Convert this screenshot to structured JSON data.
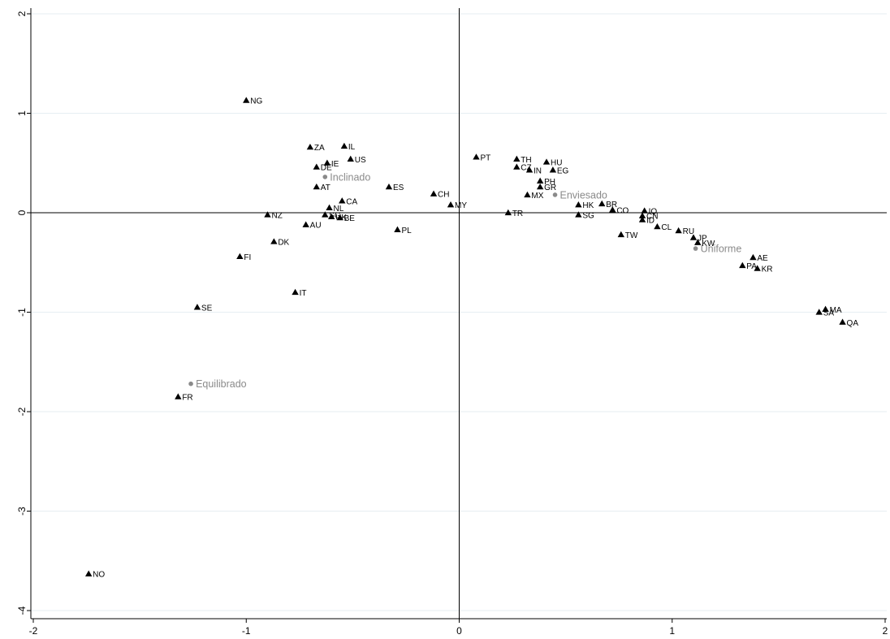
{
  "chart_data": {
    "type": "scatter",
    "title": "",
    "xlabel": "",
    "ylabel": "",
    "xlim": [
      -2,
      2
    ],
    "ylim": [
      -4,
      2
    ],
    "xticks": [
      -2,
      -1,
      0,
      1,
      2
    ],
    "yticks": [
      2,
      1,
      0,
      -1,
      -2,
      -3,
      -4
    ],
    "grid": "horizontal",
    "reference_lines": {
      "x": 0,
      "y": 0
    },
    "colors": {
      "points": "#000000",
      "categories": "#8a8a8a",
      "grid": "#e6eef2",
      "axes": "#000000"
    },
    "points": [
      {
        "label": "NG",
        "x": -1.0,
        "y": 1.13
      },
      {
        "label": "ZA",
        "x": -0.7,
        "y": 0.66
      },
      {
        "label": "IL",
        "x": -0.54,
        "y": 0.67
      },
      {
        "label": "US",
        "x": -0.51,
        "y": 0.54
      },
      {
        "label": "IE",
        "x": -0.62,
        "y": 0.5
      },
      {
        "label": "DE",
        "x": -0.67,
        "y": 0.46
      },
      {
        "label": "AT",
        "x": -0.67,
        "y": 0.26
      },
      {
        "label": "ES",
        "x": -0.33,
        "y": 0.26
      },
      {
        "label": "CA",
        "x": -0.55,
        "y": 0.12
      },
      {
        "label": "NL",
        "x": -0.61,
        "y": 0.05
      },
      {
        "label": "SG",
        "x": -0.63,
        "y": -0.02
      },
      {
        "label": "UK",
        "x": -0.6,
        "y": -0.04
      },
      {
        "label": "BE",
        "x": -0.56,
        "y": -0.05
      },
      {
        "label": "NZ",
        "x": -0.9,
        "y": -0.02
      },
      {
        "label": "AU",
        "x": -0.72,
        "y": -0.12
      },
      {
        "label": "DK",
        "x": -0.87,
        "y": -0.29
      },
      {
        "label": "FI",
        "x": -1.03,
        "y": -0.44
      },
      {
        "label": "IT",
        "x": -0.77,
        "y": -0.8
      },
      {
        "label": "SE",
        "x": -1.23,
        "y": -0.95
      },
      {
        "label": "FR",
        "x": -1.32,
        "y": -1.85
      },
      {
        "label": "NO",
        "x": -1.74,
        "y": -3.63
      },
      {
        "label": "PL",
        "x": -0.29,
        "y": -0.17
      },
      {
        "label": "CH",
        "x": -0.12,
        "y": 0.19
      },
      {
        "label": "MY",
        "x": -0.04,
        "y": 0.08
      },
      {
        "label": "PT",
        "x": 0.08,
        "y": 0.56
      },
      {
        "label": "TH",
        "x": 0.27,
        "y": 0.54
      },
      {
        "label": "CZ",
        "x": 0.27,
        "y": 0.46
      },
      {
        "label": "IN",
        "x": 0.33,
        "y": 0.43
      },
      {
        "label": "HU",
        "x": 0.41,
        "y": 0.51
      },
      {
        "label": "EG",
        "x": 0.44,
        "y": 0.43
      },
      {
        "label": "PH",
        "x": 0.38,
        "y": 0.32
      },
      {
        "label": "GR",
        "x": 0.38,
        "y": 0.26
      },
      {
        "label": "MX",
        "x": 0.32,
        "y": 0.18
      },
      {
        "label": "TR",
        "x": 0.23,
        "y": 0.0
      },
      {
        "label": "HK",
        "x": 0.56,
        "y": 0.08
      },
      {
        "label": "BR",
        "x": 0.67,
        "y": 0.09
      },
      {
        "label": "CO",
        "x": 0.72,
        "y": 0.03
      },
      {
        "label": "SG",
        "x": 0.56,
        "y": -0.02
      },
      {
        "label": "TW",
        "x": 0.76,
        "y": -0.22
      },
      {
        "label": "IQ",
        "x": 0.87,
        "y": 0.02
      },
      {
        "label": "CN",
        "x": 0.86,
        "y": -0.03
      },
      {
        "label": "ID",
        "x": 0.86,
        "y": -0.07
      },
      {
        "label": "CL",
        "x": 0.93,
        "y": -0.14
      },
      {
        "label": "RU",
        "x": 1.03,
        "y": -0.18
      },
      {
        "label": "JP",
        "x": 1.1,
        "y": -0.25
      },
      {
        "label": "KW",
        "x": 1.12,
        "y": -0.3
      },
      {
        "label": "AE",
        "x": 1.38,
        "y": -0.45
      },
      {
        "label": "PA",
        "x": 1.33,
        "y": -0.53
      },
      {
        "label": "KR",
        "x": 1.4,
        "y": -0.56
      },
      {
        "label": "MA",
        "x": 1.72,
        "y": -0.97
      },
      {
        "label": "SA",
        "x": 1.69,
        "y": -1.0
      },
      {
        "label": "QA",
        "x": 1.8,
        "y": -1.1
      }
    ],
    "category_points": [
      {
        "label": "Inclinado",
        "x": -0.63,
        "y": 0.36
      },
      {
        "label": "Enviesado",
        "x": 0.45,
        "y": 0.18
      },
      {
        "label": "Uniforme",
        "x": 1.11,
        "y": -0.36
      },
      {
        "label": "Equilibrado",
        "x": -1.26,
        "y": -1.72
      }
    ]
  }
}
